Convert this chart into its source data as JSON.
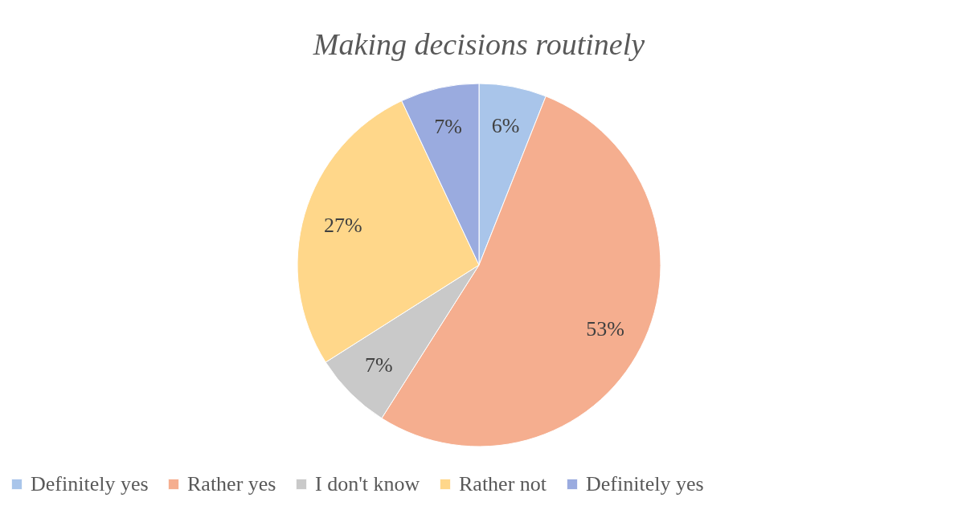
{
  "chart_data": {
    "type": "pie",
    "title": "Making decisions routinely",
    "categories": [
      "Definitely yes",
      "Rather yes",
      "I don't know",
      "Rather not",
      "Definitely yes"
    ],
    "values": [
      6,
      53,
      7,
      27,
      7
    ],
    "colors": [
      "#a9c5ea",
      "#f5ae8f",
      "#c9c9c9",
      "#ffd78a",
      "#9aabdf"
    ],
    "value_labels": [
      "6%",
      "53%",
      "7%",
      "27%",
      "7%"
    ],
    "legend": "bottom"
  }
}
